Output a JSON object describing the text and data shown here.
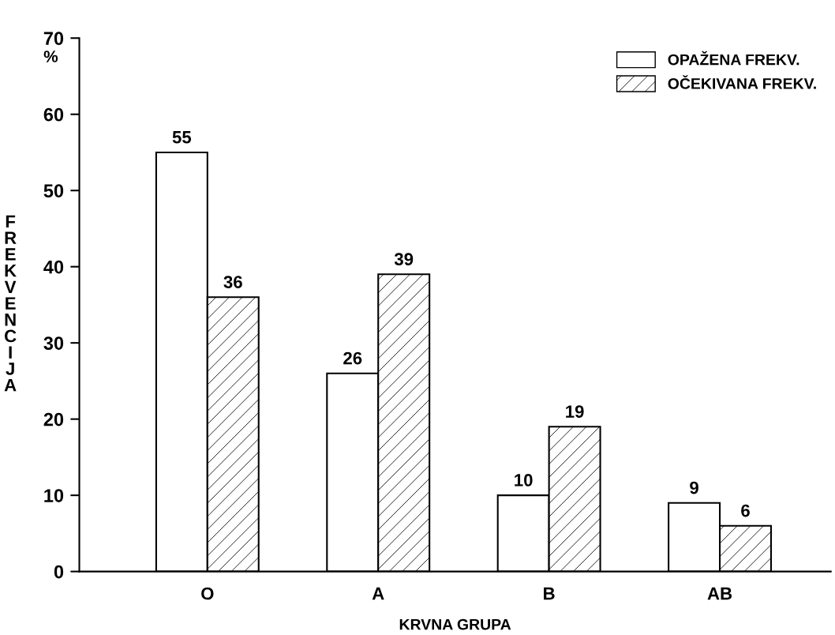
{
  "chart_data": {
    "type": "bar",
    "xlabel": "KRVNA GRUPA",
    "ylabel": "FREKVENCIJA",
    "categories": [
      "O",
      "A",
      "B",
      "AB"
    ],
    "series": [
      {
        "name": "OPAŽENA FREKV.",
        "color": "#ffffff",
        "values": [
          55,
          26,
          10,
          9
        ]
      },
      {
        "name": "OČEKIVANA FREKV.",
        "color": "#000000",
        "values": [
          36,
          39,
          19,
          6
        ]
      }
    ],
    "ylim": [
      0,
      70
    ],
    "yticks": [
      0,
      10,
      20,
      30,
      40,
      50,
      60,
      70
    ],
    "annotations": [
      "%"
    ],
    "data_labels": true,
    "legend": "top right",
    "grid": false
  }
}
